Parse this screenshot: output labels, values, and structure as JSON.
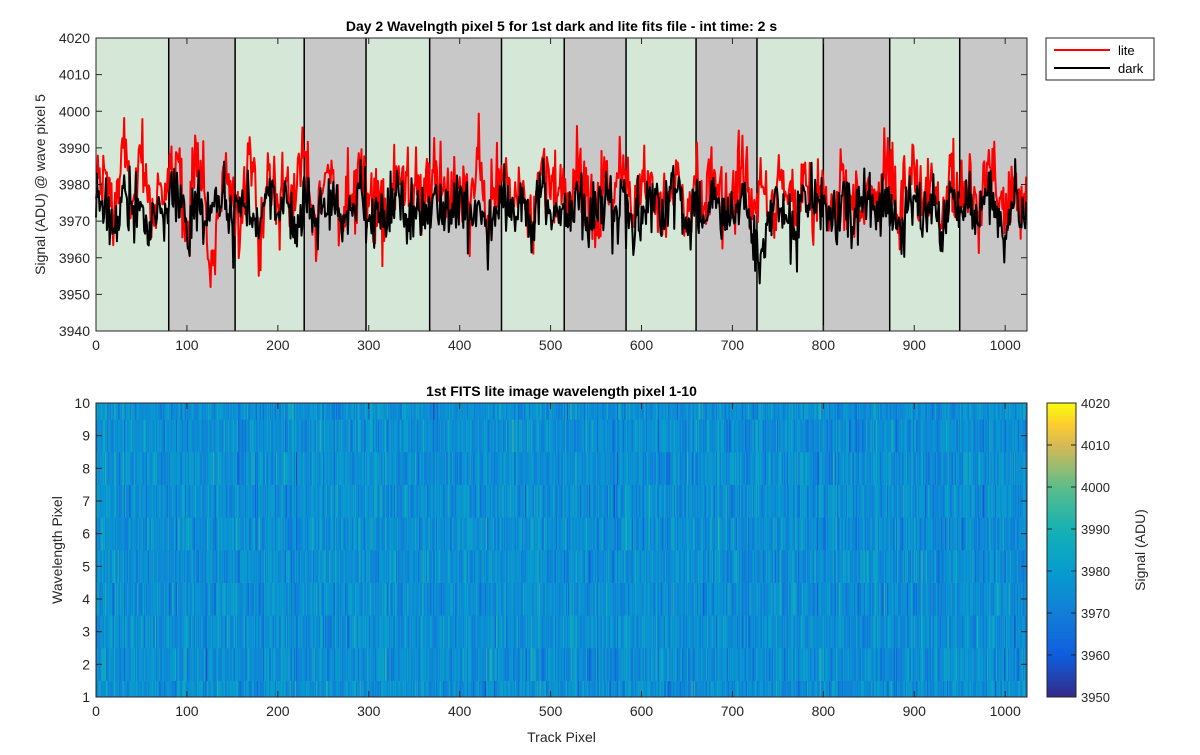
{
  "chart_data": [
    {
      "type": "line",
      "title": "Day 2 Wavelngth pixel 5 for 1st dark and lite fits file - int time: 2 s",
      "xlabel": "",
      "ylabel": "Signal (ADU) @ wave pixel 5",
      "xlim": [
        0,
        1024
      ],
      "ylim": [
        3940,
        4020
      ],
      "xticks": [
        0,
        100,
        200,
        300,
        400,
        500,
        600,
        700,
        800,
        900,
        1000
      ],
      "yticks": [
        3940,
        3950,
        3960,
        3970,
        3980,
        3990,
        4000,
        4010,
        4020
      ],
      "legend_position": "outside-top-right",
      "band_boundaries": [
        0,
        80,
        153,
        229,
        297,
        367,
        446,
        515,
        583,
        660,
        727,
        800,
        873,
        950,
        1024
      ],
      "band_colors": [
        "#d5e8d8",
        "#c8c8c8"
      ],
      "series": [
        {
          "name": "lite",
          "color": "#ff0000",
          "n_points": 1024,
          "sampled": [
            [
              0,
              3976
            ],
            [
              10,
              3984
            ],
            [
              20,
              3972
            ],
            [
              30,
              3990
            ],
            [
              40,
              3975
            ],
            [
              50,
              3986
            ],
            [
              60,
              3970
            ],
            [
              70,
              3980
            ],
            [
              80,
              3978
            ],
            [
              90,
              3987
            ],
            [
              100,
              3969
            ],
            [
              110,
              3991
            ],
            [
              120,
              3976
            ],
            [
              126,
              3952
            ],
            [
              140,
              3985
            ],
            [
              150,
              3978
            ],
            [
              160,
              3973
            ],
            [
              170,
              3989
            ],
            [
              180,
              3966
            ],
            [
              190,
              3984
            ],
            [
              200,
              3974
            ],
            [
              210,
              3981
            ],
            [
              220,
              3976
            ],
            [
              230,
              3988
            ],
            [
              240,
              3972
            ],
            [
              250,
              3979
            ],
            [
              260,
              3983
            ],
            [
              270,
              3970
            ],
            [
              280,
              3977
            ],
            [
              290,
              3986
            ],
            [
              300,
              3974
            ],
            [
              310,
              3981
            ],
            [
              320,
              3969
            ],
            [
              330,
              3985
            ],
            [
              340,
              3976
            ],
            [
              350,
              3980
            ],
            [
              360,
              3972
            ],
            [
              370,
              3984
            ],
            [
              380,
              3977
            ],
            [
              390,
              3971
            ],
            [
              400,
              3982
            ],
            [
              410,
              3975
            ],
            [
              420,
              3987
            ],
            [
              430,
              3970
            ],
            [
              440,
              3979
            ],
            [
              450,
              3983
            ],
            [
              460,
              3974
            ],
            [
              470,
              3981
            ],
            [
              480,
              3968
            ],
            [
              490,
              3986
            ],
            [
              500,
              3976
            ],
            [
              510,
              3979
            ],
            [
              520,
              3973
            ],
            [
              530,
              3985
            ],
            [
              540,
              3977
            ],
            [
              550,
              3970
            ],
            [
              560,
              3982
            ],
            [
              570,
              3975
            ],
            [
              580,
              3988
            ],
            [
              590,
              3971
            ],
            [
              600,
              3980
            ],
            [
              610,
              3983
            ],
            [
              620,
              3974
            ],
            [
              630,
              3978
            ],
            [
              640,
              3986
            ],
            [
              650,
              3969
            ],
            [
              660,
              3981
            ],
            [
              670,
              3975
            ],
            [
              680,
              3984
            ],
            [
              690,
              3972
            ],
            [
              700,
              3979
            ],
            [
              710,
              3985
            ],
            [
              720,
              3974
            ],
            [
              730,
              3980
            ],
            [
              740,
              3971
            ],
            [
              750,
              3983
            ],
            [
              760,
              3977
            ],
            [
              770,
              3969
            ],
            [
              780,
              3986
            ],
            [
              790,
              3975
            ],
            [
              800,
              3981
            ],
            [
              810,
              3973
            ],
            [
              820,
              3984
            ],
            [
              830,
              3977
            ],
            [
              840,
              3970
            ],
            [
              850,
              3982
            ],
            [
              860,
              3975
            ],
            [
              870,
              3987
            ],
            [
              880,
              3971
            ],
            [
              890,
              3979
            ],
            [
              900,
              3984
            ],
            [
              910,
              3974
            ],
            [
              920,
              3981
            ],
            [
              930,
              3968
            ],
            [
              940,
              3985
            ],
            [
              950,
              3976
            ],
            [
              960,
              3980
            ],
            [
              970,
              3972
            ],
            [
              980,
              3986
            ],
            [
              990,
              3977
            ],
            [
              1000,
              3970
            ],
            [
              1010,
              3982
            ],
            [
              1020,
              3975
            ]
          ]
        },
        {
          "name": "dark",
          "color": "#000000",
          "n_points": 1024,
          "sampled": [
            [
              0,
              3971
            ],
            [
              10,
              3976
            ],
            [
              20,
              3968
            ],
            [
              30,
              3979
            ],
            [
              40,
              3972
            ],
            [
              50,
              3974
            ],
            [
              60,
              3965
            ],
            [
              70,
              3975
            ],
            [
              80,
              3973
            ],
            [
              90,
              3978
            ],
            [
              100,
              3966
            ],
            [
              110,
              3977
            ],
            [
              120,
              3970
            ],
            [
              130,
              3974
            ],
            [
              140,
              3979
            ],
            [
              150,
              3969
            ],
            [
              160,
              3975
            ],
            [
              170,
              3971
            ],
            [
              180,
              3968
            ],
            [
              190,
              3977
            ],
            [
              200,
              3972
            ],
            [
              210,
              3975
            ],
            [
              220,
              3969
            ],
            [
              230,
              3978
            ],
            [
              240,
              3971
            ],
            [
              250,
              3974
            ],
            [
              260,
              3976
            ],
            [
              270,
              3967
            ],
            [
              280,
              3973
            ],
            [
              290,
              3979
            ],
            [
              300,
              3970
            ],
            [
              310,
              3975
            ],
            [
              320,
              3968
            ],
            [
              330,
              3977
            ],
            [
              340,
              3972
            ],
            [
              350,
              3974
            ],
            [
              360,
              3969
            ],
            [
              370,
              3976
            ],
            [
              380,
              3971
            ],
            [
              390,
              3973
            ],
            [
              400,
              3978
            ],
            [
              410,
              3970
            ],
            [
              420,
              3975
            ],
            [
              430,
              3966
            ],
            [
              440,
              3974
            ],
            [
              450,
              3977
            ],
            [
              460,
              3971
            ],
            [
              470,
              3975
            ],
            [
              480,
              3968
            ],
            [
              490,
              3979
            ],
            [
              500,
              3972
            ],
            [
              510,
              3974
            ],
            [
              520,
              3969
            ],
            [
              530,
              3977
            ],
            [
              540,
              3971
            ],
            [
              550,
              3973
            ],
            [
              560,
              3976
            ],
            [
              570,
              3970
            ],
            [
              580,
              3978
            ],
            [
              590,
              3967
            ],
            [
              600,
              3974
            ],
            [
              610,
              3977
            ],
            [
              620,
              3971
            ],
            [
              630,
              3975
            ],
            [
              640,
              3979
            ],
            [
              650,
              3968
            ],
            [
              660,
              3974
            ],
            [
              670,
              3970
            ],
            [
              680,
              3976
            ],
            [
              690,
              3969
            ],
            [
              700,
              3973
            ],
            [
              710,
              3977
            ],
            [
              720,
              3971
            ],
            [
              730,
              3953
            ],
            [
              740,
              3972
            ],
            [
              750,
              3976
            ],
            [
              760,
              3970
            ],
            [
              770,
              3967
            ],
            [
              780,
              3978
            ],
            [
              790,
              3972
            ],
            [
              800,
              3975
            ],
            [
              810,
              3969
            ],
            [
              820,
              3977
            ],
            [
              830,
              3971
            ],
            [
              840,
              3974
            ],
            [
              850,
              3976
            ],
            [
              860,
              3970
            ],
            [
              870,
              3979
            ],
            [
              880,
              3968
            ],
            [
              890,
              3973
            ],
            [
              900,
              3977
            ],
            [
              910,
              3971
            ],
            [
              920,
              3975
            ],
            [
              930,
              3967
            ],
            [
              940,
              3978
            ],
            [
              950,
              3972
            ],
            [
              960,
              3974
            ],
            [
              970,
              3969
            ],
            [
              980,
              3977
            ],
            [
              990,
              3971
            ],
            [
              1000,
              3966
            ],
            [
              1010,
              3975
            ],
            [
              1020,
              3972
            ]
          ]
        }
      ]
    },
    {
      "type": "heatmap",
      "title": "1st FITS lite image wavelength pixel 1-10",
      "xlabel": "Track Pixel",
      "ylabel": "Wavelength Pixel",
      "xlim": [
        0,
        1024
      ],
      "ylim": [
        1,
        10
      ],
      "xticks": [
        0,
        100,
        200,
        300,
        400,
        500,
        600,
        700,
        800,
        900,
        1000
      ],
      "yticks": [
        1,
        2,
        3,
        4,
        5,
        6,
        7,
        8,
        9,
        10
      ],
      "n_columns": 1024,
      "n_rows": 10,
      "value_mean": 3976,
      "value_std": 7,
      "colorbar": {
        "label": "Signal (ADU)",
        "range": [
          3950,
          4020
        ],
        "ticks": [
          3950,
          3960,
          3970,
          3980,
          3990,
          4000,
          4010,
          4020
        ],
        "colormap": "parula"
      }
    }
  ]
}
